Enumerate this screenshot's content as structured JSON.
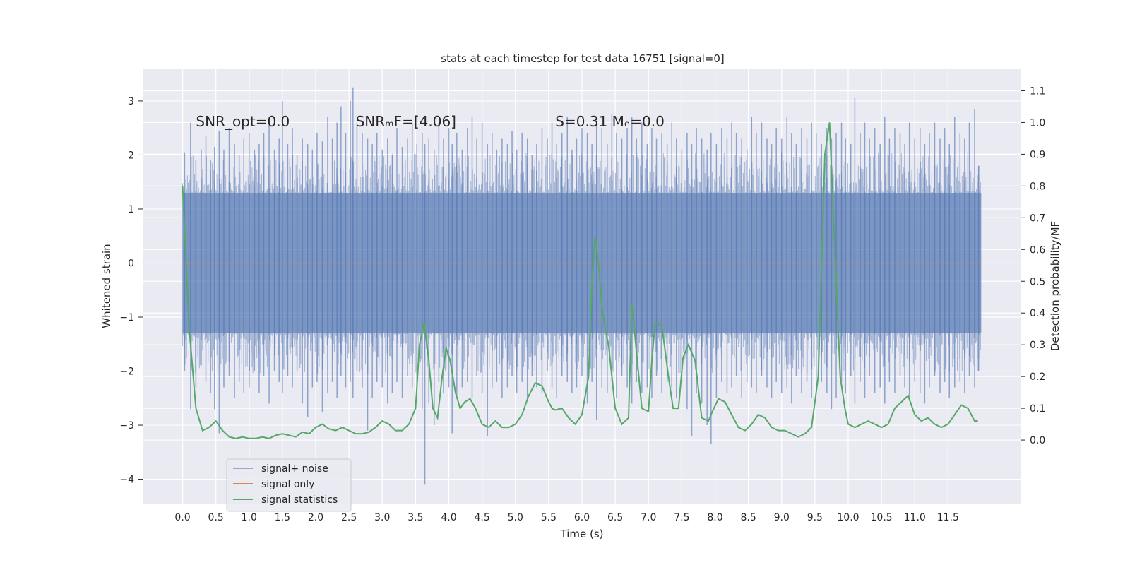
{
  "chart_data": {
    "type": "line",
    "title": "stats at each timestep for test data 16751 [signal=0]",
    "xlabel": "Time (s)",
    "ylabel": "Whitened strain",
    "ylabel_right": "Detection probability/MF",
    "xlim": [
      -0.6,
      12.6
    ],
    "ylim": [
      -4.45,
      3.6
    ],
    "ylim_right": [
      -0.2,
      1.17
    ],
    "x_ticks": [
      0.0,
      0.5,
      1.0,
      1.5,
      2.0,
      2.5,
      3.0,
      3.5,
      4.0,
      4.5,
      5.0,
      5.5,
      6.0,
      6.5,
      7.0,
      7.5,
      8.0,
      8.5,
      9.0,
      9.5,
      10.0,
      10.5,
      11.0,
      11.5
    ],
    "x_tick_labels": [
      "0.0",
      "0.5",
      "1.0",
      "1.5",
      "2.0",
      "2.5",
      "3.0",
      "3.5",
      "4.0",
      "4.5",
      "5.0",
      "5.5",
      "6.0",
      "6.5",
      "7.0",
      "7.5",
      "8.0",
      "8.5",
      "9.0",
      "9.5",
      "10.0",
      "10.5",
      "11.0",
      "11.5"
    ],
    "y_ticks": [
      -4,
      -3,
      -2,
      -1,
      0,
      1,
      2,
      3
    ],
    "y_tick_labels": [
      "−4",
      "−3",
      "−2",
      "−1",
      "0",
      "1",
      "2",
      "3"
    ],
    "y_ticks_right": [
      0.0,
      0.1,
      0.2,
      0.3,
      0.4,
      0.5,
      0.6,
      0.7,
      0.8,
      0.9,
      1.0,
      1.1
    ],
    "y_tick_labels_right": [
      "0.0",
      "0.1",
      "0.2",
      "0.3",
      "0.4",
      "0.5",
      "0.6",
      "0.7",
      "0.8",
      "0.9",
      "1.0",
      "1.1"
    ],
    "grid": true,
    "legend_position": "lower-left",
    "annotations": [
      {
        "text": "SNR_opt=0.0",
        "x": 0.2,
        "y": 2.53
      },
      {
        "text": "SNRₘF=[4.06]",
        "x": 2.6,
        "y": 2.53
      },
      {
        "text": "S=0.31   Mₑ=0.0",
        "x": 5.6,
        "y": 2.53
      }
    ],
    "series": [
      {
        "name": "signal+ noise",
        "axis": "left",
        "color": "#4c72b0",
        "x_range": [
          0.0,
          12.0
        ],
        "band": [
          -1.3,
          1.3
        ],
        "spikes": [
          [
            0.03,
            2.05,
            -2.0
          ],
          [
            0.12,
            2.6,
            -2.7
          ],
          [
            0.2,
            1.9,
            -2.3
          ],
          [
            0.28,
            2.1,
            -1.9
          ],
          [
            0.35,
            2.35,
            -2.2
          ],
          [
            0.42,
            1.9,
            -2.4
          ],
          [
            0.48,
            2.15,
            -2.7
          ],
          [
            0.55,
            2.45,
            -3.15
          ],
          [
            0.62,
            2.1,
            -2.3
          ],
          [
            0.7,
            2.5,
            -2.1
          ],
          [
            0.78,
            2.2,
            -2.5
          ],
          [
            0.85,
            2.0,
            -2.2
          ],
          [
            0.92,
            2.3,
            -2.4
          ],
          [
            1.0,
            2.4,
            -2.3
          ],
          [
            1.08,
            2.1,
            -2.0
          ],
          [
            1.15,
            2.2,
            -2.4
          ],
          [
            1.22,
            2.4,
            -2.1
          ],
          [
            1.3,
            2.7,
            -2.6
          ],
          [
            1.38,
            2.1,
            -2.0
          ],
          [
            1.45,
            2.3,
            -2.2
          ],
          [
            1.5,
            3.0,
            -2.4
          ],
          [
            1.58,
            2.2,
            -2.1
          ],
          [
            1.65,
            2.5,
            -2.3
          ],
          [
            1.72,
            2.0,
            -2.0
          ],
          [
            1.8,
            2.3,
            -2.6
          ],
          [
            1.88,
            2.2,
            -2.85
          ],
          [
            1.95,
            2.1,
            -2.3
          ],
          [
            2.02,
            2.4,
            -2.2
          ],
          [
            2.1,
            2.25,
            -2.75
          ],
          [
            2.18,
            2.7,
            -2.4
          ],
          [
            2.25,
            2.3,
            -2.2
          ],
          [
            2.32,
            2.6,
            -2.5
          ],
          [
            2.38,
            2.9,
            -2.1
          ],
          [
            2.45,
            2.4,
            -2.3
          ],
          [
            2.52,
            3.0,
            -2.2
          ],
          [
            2.56,
            3.25,
            -2.5
          ],
          [
            2.62,
            2.6,
            -2.0
          ],
          [
            2.7,
            2.4,
            -2.3
          ],
          [
            2.78,
            2.3,
            -3.1
          ],
          [
            2.85,
            2.2,
            -2.5
          ],
          [
            2.92,
            2.4,
            -2.2
          ],
          [
            3.0,
            2.1,
            -2.3
          ],
          [
            3.08,
            2.3,
            -2.6
          ],
          [
            3.15,
            2.0,
            -2.4
          ],
          [
            3.22,
            2.5,
            -2.2
          ],
          [
            3.3,
            2.15,
            -2.5
          ],
          [
            3.38,
            2.3,
            -2.1
          ],
          [
            3.45,
            2.6,
            -2.3
          ],
          [
            3.52,
            2.2,
            -2.4
          ],
          [
            3.6,
            2.4,
            -2.7
          ],
          [
            3.64,
            2.2,
            -4.1
          ],
          [
            3.7,
            2.3,
            -2.6
          ],
          [
            3.78,
            2.1,
            -3.0
          ],
          [
            3.85,
            2.6,
            -2.2
          ],
          [
            3.92,
            2.3,
            -2.4
          ],
          [
            4.0,
            2.5,
            -2.3
          ],
          [
            4.05,
            2.2,
            -3.15
          ],
          [
            4.12,
            2.4,
            -2.5
          ],
          [
            4.2,
            2.1,
            -2.3
          ],
          [
            4.28,
            2.5,
            -2.2
          ],
          [
            4.35,
            2.7,
            -2.5
          ],
          [
            4.42,
            2.3,
            -2.1
          ],
          [
            4.5,
            2.6,
            -2.4
          ],
          [
            4.58,
            2.2,
            -3.2
          ],
          [
            4.65,
            2.4,
            -2.3
          ],
          [
            4.72,
            2.1,
            -2.2
          ],
          [
            4.8,
            2.3,
            -2.5
          ],
          [
            4.88,
            2.2,
            -2.3
          ],
          [
            4.95,
            2.45,
            -2.1
          ],
          [
            5.02,
            2.1,
            -2.4
          ],
          [
            5.1,
            2.4,
            -2.2
          ],
          [
            5.18,
            2.3,
            -2.5
          ],
          [
            5.25,
            2.0,
            -2.1
          ],
          [
            5.32,
            2.2,
            -2.3
          ],
          [
            5.4,
            2.5,
            -2.4
          ],
          [
            5.48,
            2.3,
            -2.0
          ],
          [
            5.55,
            2.6,
            -2.3
          ],
          [
            5.62,
            2.2,
            -2.5
          ],
          [
            5.7,
            2.4,
            -2.1
          ],
          [
            5.78,
            2.7,
            -2.2
          ],
          [
            5.85,
            2.1,
            -2.4
          ],
          [
            5.92,
            2.3,
            -2.3
          ],
          [
            6.0,
            2.5,
            -2.1
          ],
          [
            6.08,
            2.4,
            -2.6
          ],
          [
            6.15,
            2.2,
            -2.2
          ],
          [
            6.22,
            2.6,
            -2.9
          ],
          [
            6.3,
            2.5,
            -2.3
          ],
          [
            6.38,
            2.2,
            -2.4
          ],
          [
            6.45,
            2.75,
            -2.2
          ],
          [
            6.52,
            2.4,
            -2.5
          ],
          [
            6.6,
            2.3,
            -2.1
          ],
          [
            6.68,
            2.5,
            -2.3
          ],
          [
            6.75,
            2.7,
            -2.6
          ],
          [
            6.82,
            2.3,
            -2.2
          ],
          [
            6.9,
            2.6,
            -2.4
          ],
          [
            6.98,
            2.2,
            -2.3
          ],
          [
            7.05,
            2.5,
            -2.5
          ],
          [
            7.12,
            2.3,
            -2.1
          ],
          [
            7.2,
            2.4,
            -2.4
          ],
          [
            7.28,
            2.2,
            -2.2
          ],
          [
            7.35,
            2.6,
            -2.3
          ],
          [
            7.42,
            2.3,
            -2.5
          ],
          [
            7.5,
            2.1,
            -2.2
          ],
          [
            7.58,
            2.4,
            -2.7
          ],
          [
            7.65,
            2.2,
            -3.2
          ],
          [
            7.72,
            2.5,
            -2.4
          ],
          [
            7.8,
            2.3,
            -2.6
          ],
          [
            7.88,
            2.1,
            -3.0
          ],
          [
            7.94,
            2.4,
            -3.35
          ],
          [
            8.02,
            2.2,
            -2.5
          ],
          [
            8.1,
            2.5,
            -2.2
          ],
          [
            8.18,
            2.3,
            -2.4
          ],
          [
            8.25,
            2.6,
            -2.3
          ],
          [
            8.32,
            2.4,
            -2.1
          ],
          [
            8.4,
            2.3,
            -2.5
          ],
          [
            8.48,
            2.1,
            -2.2
          ],
          [
            8.55,
            2.7,
            -2.3
          ],
          [
            8.62,
            2.4,
            -2.4
          ],
          [
            8.7,
            2.6,
            -2.1
          ],
          [
            8.78,
            2.3,
            -2.3
          ],
          [
            8.85,
            2.2,
            -2.5
          ],
          [
            8.92,
            2.5,
            -2.2
          ],
          [
            9.0,
            2.3,
            -2.4
          ],
          [
            9.08,
            2.7,
            -2.3
          ],
          [
            9.15,
            2.4,
            -2.6
          ],
          [
            9.22,
            2.2,
            -2.1
          ],
          [
            9.3,
            2.5,
            -2.4
          ],
          [
            9.38,
            2.3,
            -2.2
          ],
          [
            9.45,
            2.6,
            -2.5
          ],
          [
            9.52,
            2.4,
            -2.3
          ],
          [
            9.6,
            2.2,
            -2.2
          ],
          [
            9.68,
            2.5,
            -2.4
          ],
          [
            9.75,
            2.3,
            -2.7
          ],
          [
            9.82,
            2.4,
            -2.5
          ],
          [
            9.9,
            2.6,
            -2.2
          ],
          [
            9.96,
            2.3,
            -2.4
          ],
          [
            10.04,
            2.2,
            -2.1
          ],
          [
            10.1,
            3.05,
            -2.6
          ],
          [
            10.18,
            2.4,
            -2.2
          ],
          [
            10.25,
            2.6,
            -2.5
          ],
          [
            10.32,
            2.3,
            -2.1
          ],
          [
            10.4,
            2.5,
            -2.4
          ],
          [
            10.48,
            2.2,
            -2.3
          ],
          [
            10.55,
            2.7,
            -2.6
          ],
          [
            10.62,
            2.3,
            -2.2
          ],
          [
            10.7,
            2.5,
            -2.4
          ],
          [
            10.78,
            2.4,
            -2.1
          ],
          [
            10.85,
            2.2,
            -2.3
          ],
          [
            10.92,
            2.6,
            -2.5
          ],
          [
            11.0,
            2.3,
            -2.2
          ],
          [
            11.08,
            2.5,
            -2.4
          ],
          [
            11.15,
            2.2,
            -2.6
          ],
          [
            11.22,
            2.4,
            -2.3
          ],
          [
            11.3,
            2.6,
            -2.1
          ],
          [
            11.38,
            2.3,
            -2.4
          ],
          [
            11.45,
            2.5,
            -2.2
          ],
          [
            11.52,
            2.2,
            -2.5
          ],
          [
            11.6,
            2.7,
            -2.3
          ],
          [
            11.68,
            2.4,
            -2.2
          ],
          [
            11.75,
            2.3,
            -2.4
          ],
          [
            11.82,
            2.6,
            -2.1
          ],
          [
            11.9,
            2.85,
            -2.3
          ],
          [
            11.96,
            1.8,
            -2.0
          ]
        ]
      },
      {
        "name": "signal only",
        "axis": "left",
        "color": "#dd8452",
        "x": [
          0.0,
          12.0
        ],
        "y": [
          0.0,
          0.0
        ]
      },
      {
        "name": "signal statistics",
        "axis": "right",
        "color": "#55a868",
        "x": [
          0.0,
          0.1,
          0.2,
          0.3,
          0.4,
          0.5,
          0.6,
          0.7,
          0.8,
          0.9,
          1.0,
          1.1,
          1.2,
          1.3,
          1.4,
          1.5,
          1.6,
          1.7,
          1.8,
          1.9,
          2.0,
          2.1,
          2.2,
          2.3,
          2.4,
          2.5,
          2.6,
          2.7,
          2.8,
          2.9,
          3.0,
          3.1,
          3.2,
          3.3,
          3.4,
          3.5,
          3.56,
          3.63,
          3.7,
          3.76,
          3.83,
          3.9,
          3.96,
          4.02,
          4.1,
          4.17,
          4.24,
          4.32,
          4.4,
          4.5,
          4.6,
          4.7,
          4.8,
          4.9,
          5.0,
          5.1,
          5.2,
          5.3,
          5.4,
          5.5,
          5.55,
          5.6,
          5.7,
          5.8,
          5.9,
          6.0,
          6.1,
          6.15,
          6.2,
          6.25,
          6.3,
          6.35,
          6.4,
          6.5,
          6.6,
          6.7,
          6.75,
          6.8,
          6.9,
          7.0,
          7.05,
          7.1,
          7.2,
          7.3,
          7.37,
          7.45,
          7.52,
          7.6,
          7.7,
          7.8,
          7.9,
          7.96,
          8.05,
          8.15,
          8.25,
          8.35,
          8.45,
          8.55,
          8.65,
          8.75,
          8.85,
          8.95,
          9.05,
          9.15,
          9.25,
          9.35,
          9.45,
          9.55,
          9.65,
          9.72,
          9.8,
          9.88,
          9.95,
          10.0,
          10.1,
          10.2,
          10.3,
          10.4,
          10.5,
          10.6,
          10.7,
          10.8,
          10.9,
          11.0,
          11.1,
          11.2,
          11.3,
          11.4,
          11.5,
          11.6,
          11.7,
          11.8,
          11.9,
          11.95
        ],
        "y": [
          0.8,
          0.35,
          0.1,
          0.03,
          0.04,
          0.06,
          0.03,
          0.01,
          0.005,
          0.01,
          0.005,
          0.005,
          0.01,
          0.005,
          0.015,
          0.02,
          0.015,
          0.01,
          0.025,
          0.02,
          0.04,
          0.05,
          0.035,
          0.03,
          0.04,
          0.03,
          0.02,
          0.02,
          0.025,
          0.04,
          0.06,
          0.05,
          0.03,
          0.03,
          0.05,
          0.1,
          0.3,
          0.37,
          0.25,
          0.1,
          0.07,
          0.2,
          0.29,
          0.25,
          0.15,
          0.1,
          0.12,
          0.13,
          0.1,
          0.05,
          0.04,
          0.06,
          0.04,
          0.04,
          0.05,
          0.08,
          0.14,
          0.18,
          0.17,
          0.12,
          0.1,
          0.095,
          0.1,
          0.07,
          0.05,
          0.08,
          0.2,
          0.5,
          0.64,
          0.55,
          0.42,
          0.35,
          0.3,
          0.1,
          0.05,
          0.07,
          0.43,
          0.32,
          0.1,
          0.09,
          0.25,
          0.37,
          0.36,
          0.2,
          0.1,
          0.1,
          0.26,
          0.3,
          0.25,
          0.07,
          0.06,
          0.09,
          0.13,
          0.12,
          0.08,
          0.04,
          0.03,
          0.05,
          0.08,
          0.07,
          0.04,
          0.03,
          0.03,
          0.02,
          0.01,
          0.02,
          0.04,
          0.2,
          0.9,
          1.0,
          0.6,
          0.2,
          0.1,
          0.05,
          0.04,
          0.05,
          0.06,
          0.05,
          0.04,
          0.05,
          0.1,
          0.12,
          0.14,
          0.08,
          0.06,
          0.07,
          0.05,
          0.04,
          0.05,
          0.08,
          0.11,
          0.1,
          0.06,
          0.06
        ]
      }
    ]
  }
}
